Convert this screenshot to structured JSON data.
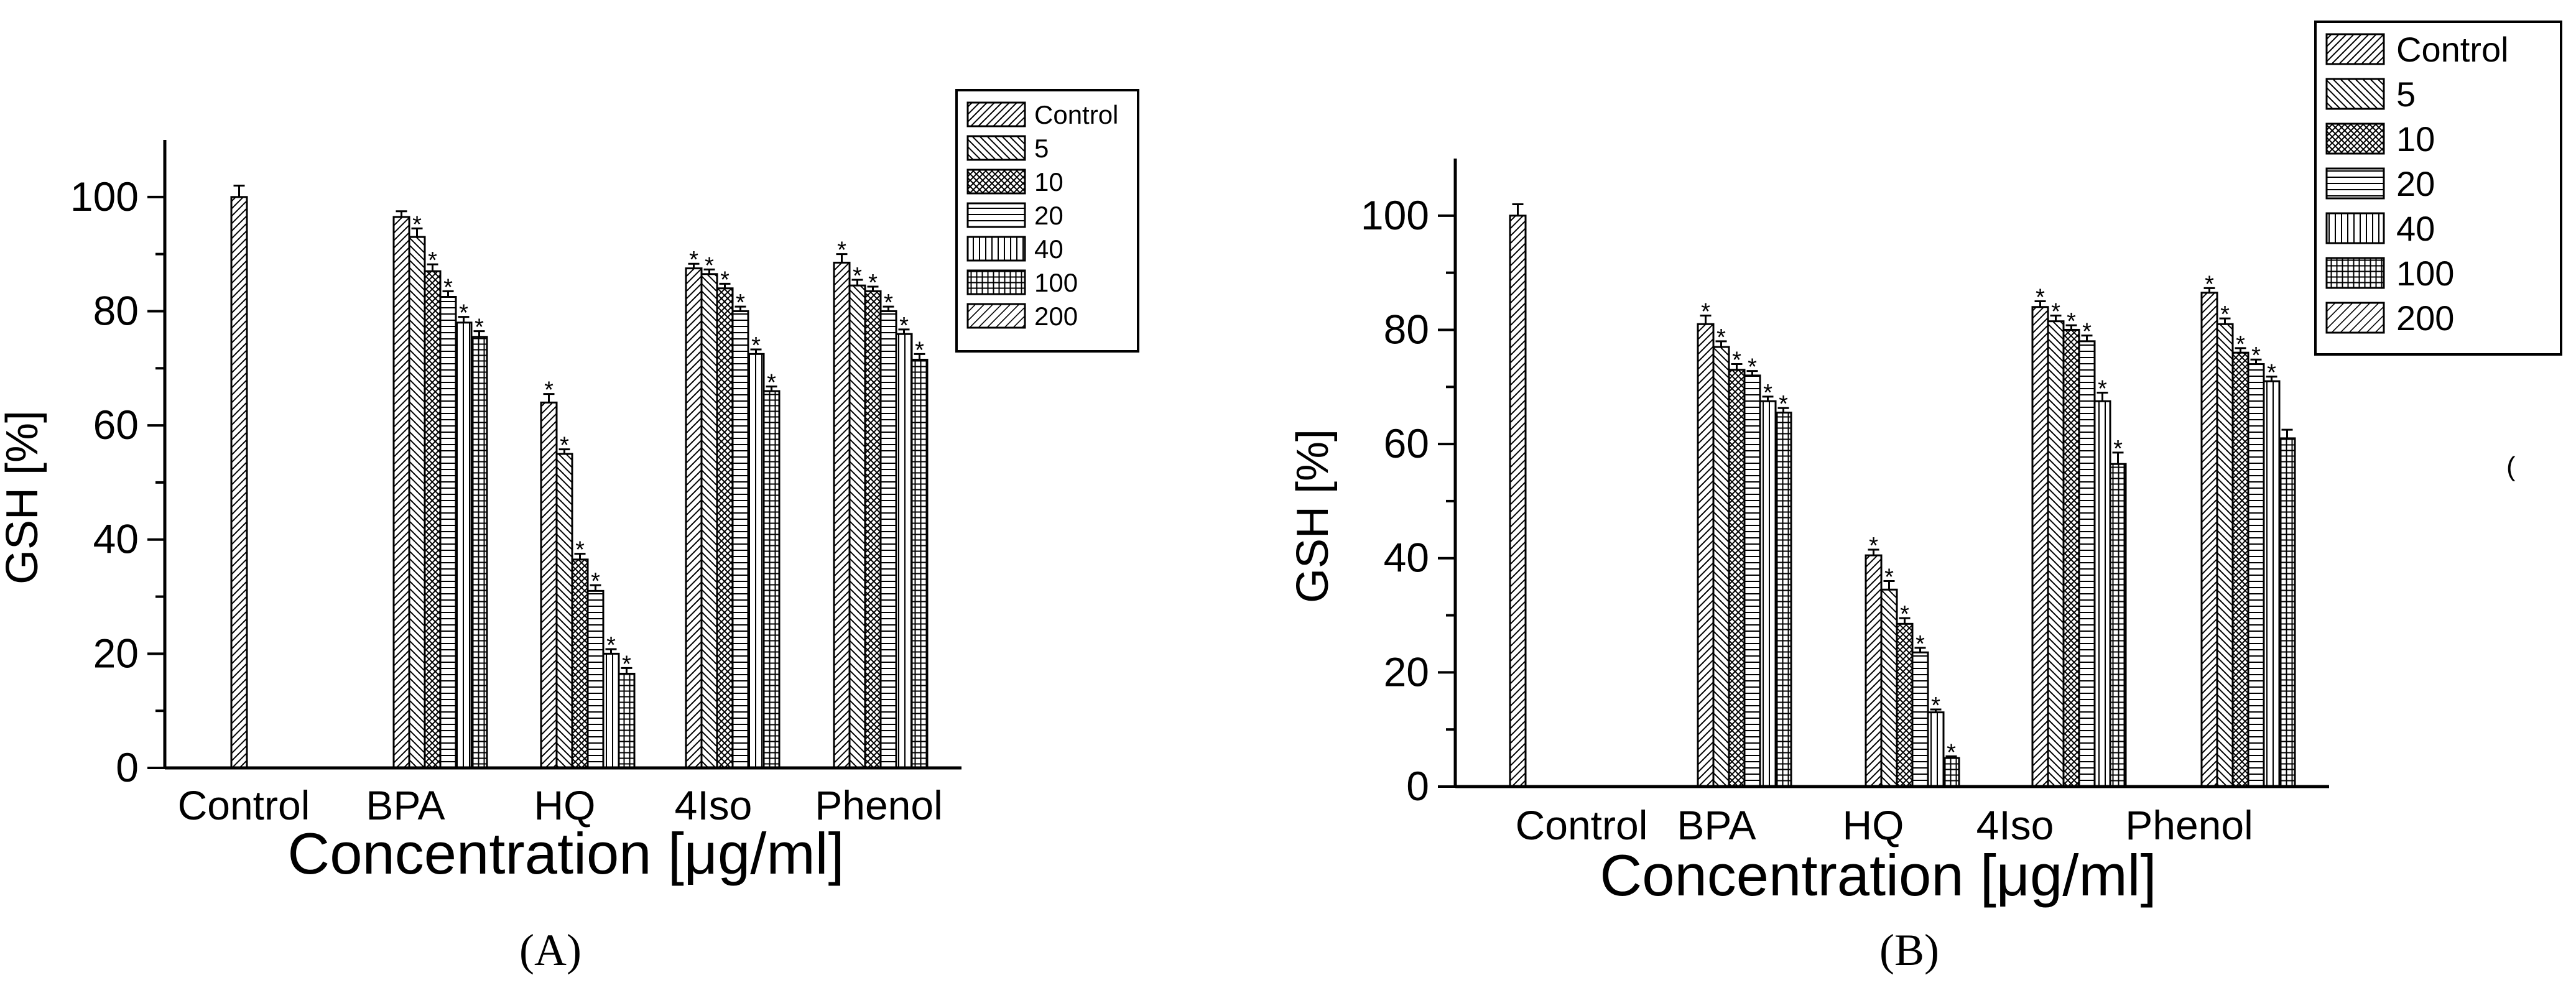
{
  "figure": {
    "panel_labels": [
      "(A)",
      "(B)"
    ]
  },
  "chart_data": [
    {
      "type": "bar",
      "panel": "A",
      "xlabel": "Concentration [μg/ml]",
      "ylabel": "GSH [%]",
      "ylim": [
        0,
        110
      ],
      "yticks": [
        0,
        20,
        40,
        60,
        80,
        100
      ],
      "categories": [
        "Control",
        "BPA",
        "HQ",
        "4Iso",
        "Phenol"
      ],
      "legend": [
        "Control",
        "5",
        "10",
        "20",
        "40",
        "100",
        "200"
      ],
      "legend_position": "top-right",
      "series": [
        {
          "name": "Control",
          "values": [
            100,
            96.5,
            64,
            87.5,
            88.5
          ],
          "errors": [
            2,
            1,
            1.5,
            0.8,
            1.5
          ],
          "sig": [
            false,
            false,
            true,
            true,
            true
          ]
        },
        {
          "name": "5",
          "values": [
            null,
            93,
            55,
            86.5,
            84.5
          ],
          "errors": [
            null,
            1.5,
            0.8,
            0.8,
            1
          ],
          "sig": [
            false,
            true,
            true,
            true,
            true
          ]
        },
        {
          "name": "10",
          "values": [
            null,
            87,
            36.5,
            84,
            83.5
          ],
          "errors": [
            null,
            1.2,
            1,
            0.8,
            0.8
          ],
          "sig": [
            false,
            true,
            true,
            true,
            true
          ]
        },
        {
          "name": "20",
          "values": [
            null,
            82.5,
            31,
            80,
            80
          ],
          "errors": [
            null,
            1,
            1,
            0.8,
            0.8
          ],
          "sig": [
            false,
            true,
            true,
            true,
            true
          ]
        },
        {
          "name": "40",
          "values": [
            null,
            78,
            20,
            72.5,
            76
          ],
          "errors": [
            null,
            1,
            0.8,
            0.8,
            0.8
          ],
          "sig": [
            false,
            true,
            true,
            true,
            true
          ]
        },
        {
          "name": "100",
          "values": [
            null,
            75.5,
            16.5,
            66,
            71.5
          ],
          "errors": [
            null,
            1,
            1,
            0.8,
            1
          ],
          "sig": [
            false,
            true,
            true,
            true,
            true
          ]
        },
        {
          "name": "200",
          "values": [
            null,
            null,
            null,
            null,
            null
          ],
          "errors": [
            null,
            null,
            null,
            null,
            null
          ],
          "sig": [
            false,
            false,
            false,
            false,
            false
          ]
        }
      ]
    },
    {
      "type": "bar",
      "panel": "B",
      "xlabel": "Concentration [μg/ml]",
      "ylabel": "GSH [%]",
      "ylim": [
        0,
        110
      ],
      "yticks": [
        0,
        20,
        40,
        60,
        80,
        100
      ],
      "categories": [
        "Control",
        "BPA",
        "HQ",
        "4Iso",
        "Phenol"
      ],
      "legend": [
        "Control",
        "5",
        "10",
        "20",
        "40",
        "100",
        "200"
      ],
      "legend_position": "top-right",
      "side_mark": "(",
      "series": [
        {
          "name": "Control",
          "values": [
            100,
            81,
            40.5,
            84,
            86.5
          ],
          "errors": [
            2,
            1.5,
            1,
            1,
            0.8
          ],
          "sig": [
            false,
            true,
            true,
            true,
            true
          ]
        },
        {
          "name": "5",
          "values": [
            null,
            77,
            34.5,
            81.5,
            81
          ],
          "errors": [
            null,
            1,
            1.5,
            1,
            1
          ],
          "sig": [
            false,
            true,
            true,
            true,
            true
          ]
        },
        {
          "name": "10",
          "values": [
            null,
            73,
            28.5,
            80,
            76
          ],
          "errors": [
            null,
            1,
            1,
            0.8,
            0.8
          ],
          "sig": [
            false,
            true,
            true,
            true,
            true
          ]
        },
        {
          "name": "20",
          "values": [
            null,
            72,
            23.5,
            78,
            74
          ],
          "errors": [
            null,
            0.8,
            0.8,
            1,
            0.8
          ],
          "sig": [
            false,
            true,
            true,
            true,
            true
          ]
        },
        {
          "name": "40",
          "values": [
            null,
            67.5,
            13,
            67.5,
            71
          ],
          "errors": [
            null,
            0.8,
            0.5,
            1.5,
            0.8
          ],
          "sig": [
            false,
            true,
            true,
            true,
            true
          ]
        },
        {
          "name": "100",
          "values": [
            null,
            65.5,
            5,
            56.5,
            61
          ],
          "errors": [
            null,
            0.8,
            0.3,
            2,
            1.5
          ],
          "sig": [
            false,
            true,
            true,
            true,
            false
          ]
        },
        {
          "name": "200",
          "values": [
            null,
            null,
            null,
            null,
            null
          ],
          "errors": [
            null,
            null,
            null,
            null,
            null
          ],
          "sig": [
            false,
            false,
            false,
            false,
            false
          ]
        }
      ]
    }
  ]
}
